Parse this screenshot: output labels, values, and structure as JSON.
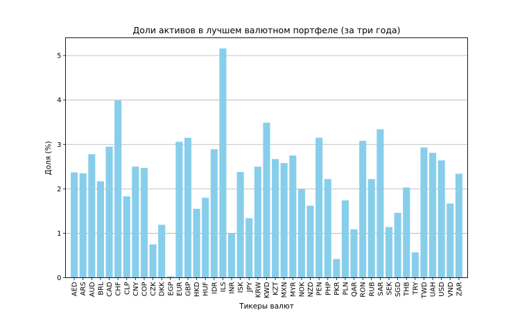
{
  "chart_data": {
    "type": "bar",
    "title": "Доли активов в лучшем валютном портфеле (за три года)",
    "xlabel": "Тикеры валют",
    "ylabel": "Доля (%)",
    "ylim": [
      0,
      5.4
    ],
    "yticks": [
      0,
      1,
      2,
      3,
      4,
      5
    ],
    "grid": "y",
    "bar_color": "#87ceeb",
    "categories": [
      "AED",
      "ARS",
      "AUD",
      "BRL",
      "CAD",
      "CHF",
      "CLP",
      "CNY",
      "COP",
      "CZK",
      "DKK",
      "EGP",
      "EUR",
      "GBP",
      "HKD",
      "HUF",
      "IDR",
      "ILS",
      "INR",
      "ISK",
      "JPY",
      "KRW",
      "KWD",
      "KZT",
      "MXN",
      "MYR",
      "NOK",
      "NZD",
      "PEN",
      "PHP",
      "PKR",
      "PLN",
      "QAR",
      "RON",
      "RUB",
      "SAR",
      "SEK",
      "SGD",
      "THB",
      "TRY",
      "TWD",
      "UAH",
      "USD",
      "VND",
      "ZAR"
    ],
    "values": [
      2.37,
      2.35,
      2.78,
      2.17,
      2.95,
      3.99,
      1.83,
      2.5,
      2.47,
      0.75,
      1.19,
      0.03,
      3.06,
      3.15,
      1.55,
      1.8,
      2.89,
      5.16,
      0.99,
      2.38,
      1.34,
      2.5,
      3.49,
      2.67,
      2.58,
      2.75,
      1.99,
      1.62,
      3.15,
      2.22,
      0.42,
      1.74,
      1.09,
      3.08,
      2.22,
      3.34,
      1.14,
      1.46,
      2.03,
      0.57,
      2.93,
      2.81,
      2.64,
      1.67,
      2.34
    ]
  }
}
